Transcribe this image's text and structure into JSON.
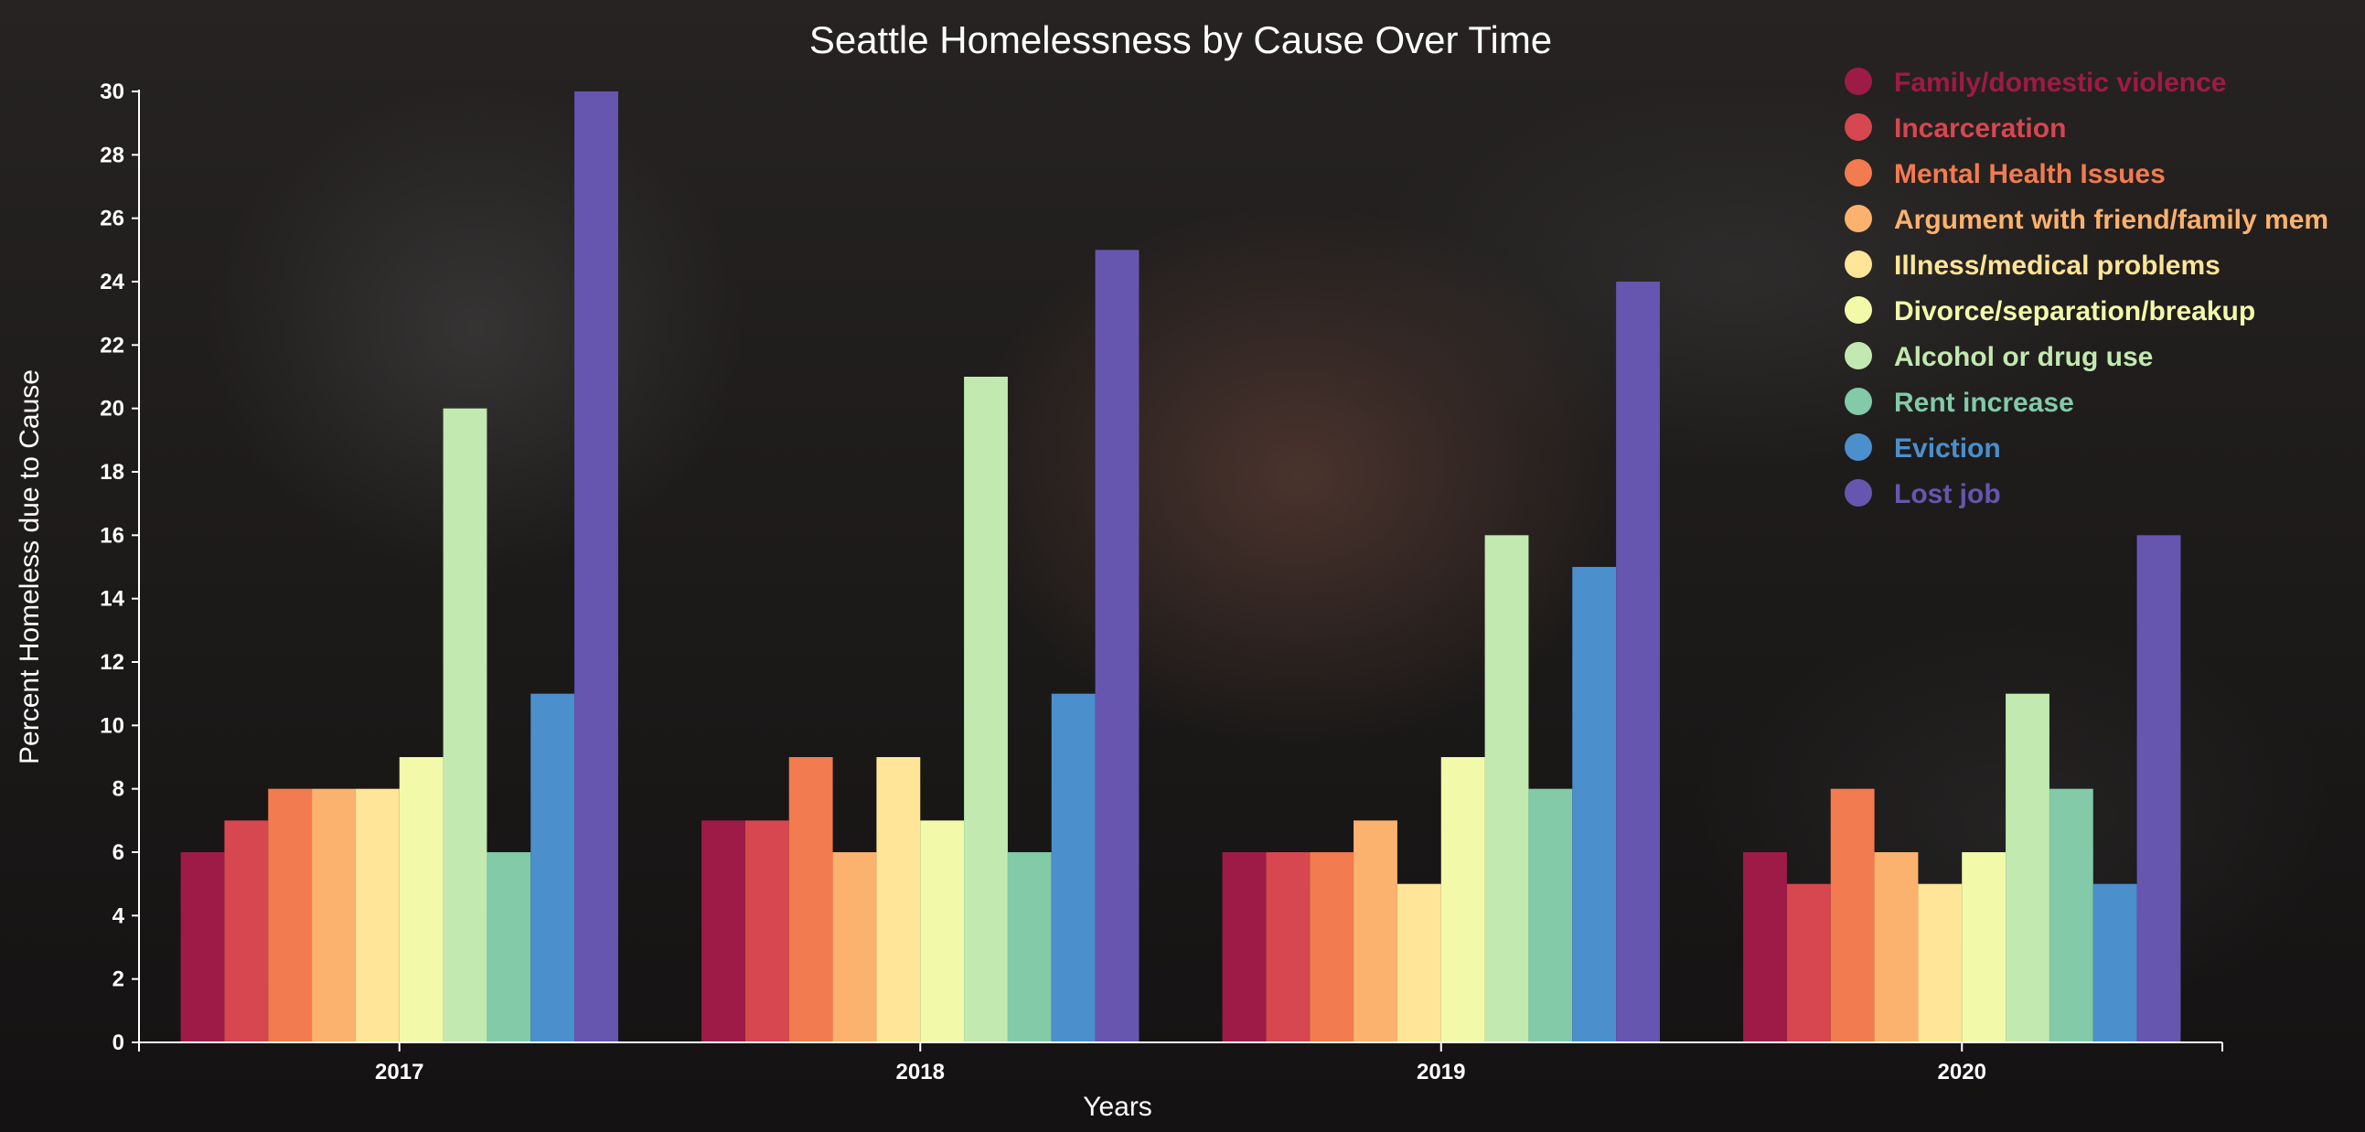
{
  "chart_data": {
    "type": "bar",
    "title": "Seattle Homelessness by Cause Over Time",
    "xlabel": "Years",
    "ylabel": "Percent Homeless due to Cause",
    "ylim": [
      0,
      30
    ],
    "yticks": [
      0,
      2,
      4,
      6,
      8,
      10,
      12,
      14,
      16,
      18,
      20,
      22,
      24,
      26,
      28,
      30
    ],
    "categories": [
      "2017",
      "2018",
      "2019",
      "2020"
    ],
    "legend_position": "top-right",
    "series": [
      {
        "name": "Family/domestic violence",
        "color": "#9e1a47",
        "values": [
          6,
          7,
          6,
          6
        ]
      },
      {
        "name": "Incarceration",
        "color": "#d6474f",
        "values": [
          7,
          7,
          6,
          5
        ]
      },
      {
        "name": "Mental Health Issues",
        "color": "#f27b4f",
        "values": [
          8,
          9,
          6,
          8
        ]
      },
      {
        "name": "Argument with friend/family mem",
        "color": "#fbb26e",
        "values": [
          8,
          6,
          7,
          6
        ]
      },
      {
        "name": "Illness/medical problems",
        "color": "#fee597",
        "values": [
          8,
          9,
          5,
          5
        ]
      },
      {
        "name": "Divorce/separation/breakup",
        "color": "#f2faa9",
        "values": [
          9,
          7,
          9,
          6
        ]
      },
      {
        "name": "Alcohol or drug use",
        "color": "#c2e9b0",
        "values": [
          20,
          21,
          16,
          11
        ]
      },
      {
        "name": "Rent increase",
        "color": "#82caa8",
        "values": [
          6,
          6,
          8,
          8
        ]
      },
      {
        "name": "Eviction",
        "color": "#4b8fcc",
        "values": [
          11,
          11,
          15,
          5
        ]
      },
      {
        "name": "Lost job",
        "color": "#6756b0",
        "values": [
          30,
          25,
          24,
          16
        ]
      }
    ]
  }
}
